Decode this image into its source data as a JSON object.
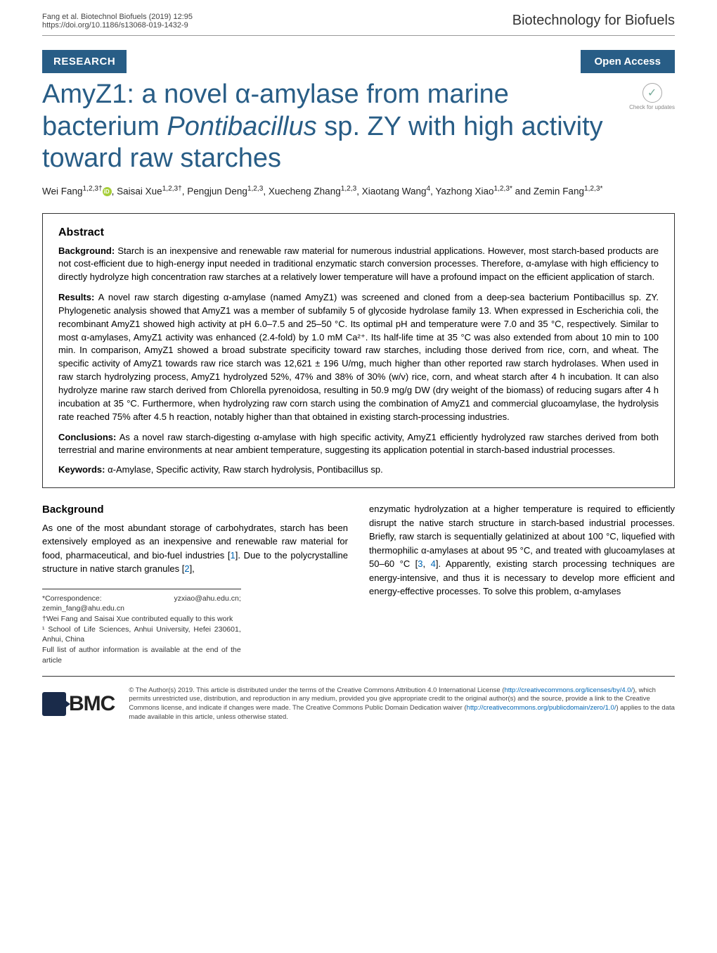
{
  "header": {
    "citation": "Fang et al. Biotechnol Biofuels    (2019) 12:95",
    "doi": "https://doi.org/10.1186/s13068-019-1432-9",
    "journal": "Biotechnology for Biofuels"
  },
  "badges": {
    "section": "RESEARCH",
    "open_access": "Open Access",
    "check_updates": "Check for updates"
  },
  "title": {
    "html": "AmyZ1: a novel α-amylase from marine bacterium <em>Pontibacillus</em> sp. ZY with high activity toward raw starches"
  },
  "authors_html": "Wei Fang<sup>1,2,3†</sup><span class='orcid-icon' data-name='orcid-icon' data-interactable='false'></span>, Saisai Xue<sup>1,2,3†</sup>, Pengjun Deng<sup>1,2,3</sup>, Xuecheng Zhang<sup>1,2,3</sup>, Xiaotang Wang<sup>4</sup>, Yazhong Xiao<sup>1,2,3*</sup> and Zemin Fang<sup>1,2,3*</sup>",
  "abstract": {
    "heading": "Abstract",
    "background_label": "Background:",
    "background_text": "Starch is an inexpensive and renewable raw material for numerous industrial applications. However, most starch-based products are not cost-efficient due to high-energy input needed in traditional enzymatic starch conversion processes. Therefore, α-amylase with high efficiency to directly hydrolyze high concentration raw starches at a relatively lower temperature will have a profound impact on the efficient application of starch.",
    "results_label": "Results:",
    "results_text": "A novel raw starch digesting α-amylase (named AmyZ1) was screened and cloned from a deep-sea bacterium Pontibacillus sp. ZY. Phylogenetic analysis showed that AmyZ1 was a member of subfamily 5 of glycoside hydrolase family 13. When expressed in Escherichia coli, the recombinant AmyZ1 showed high activity at pH 6.0–7.5 and 25–50 °C. Its optimal pH and temperature were 7.0 and 35 °C, respectively. Similar to most α-amylases, AmyZ1 activity was enhanced (2.4-fold) by 1.0 mM Ca²⁺. Its half-life time at 35 °C was also extended from about 10 min to 100 min. In comparison, AmyZ1 showed a broad substrate specificity toward raw starches, including those derived from rice, corn, and wheat. The specific activity of AmyZ1 towards raw rice starch was 12,621 ± 196 U/mg, much higher than other reported raw starch hydrolases. When used in raw starch hydrolyzing process, AmyZ1 hydrolyzed 52%, 47% and 38% of 30% (w/v) rice, corn, and wheat starch after 4 h incubation. It can also hydrolyze marine raw starch derived from Chlorella pyrenoidosa, resulting in 50.9 mg/g DW (dry weight of the biomass) of reducing sugars after 4 h incubation at 35 °C. Furthermore, when hydrolyzing raw corn starch using the combination of AmyZ1 and commercial glucoamylase, the hydrolysis rate reached 75% after 4.5 h reaction, notably higher than that obtained in existing starch-processing industries.",
    "conclusions_label": "Conclusions:",
    "conclusions_text": "As a novel raw starch-digesting α-amylase with high specific activity, AmyZ1 efficiently hydrolyzed raw starches derived from both terrestrial and marine environments at near ambient temperature, suggesting its application potential in starch-based industrial processes.",
    "keywords_label": "Keywords:",
    "keywords_text": "α-Amylase, Specific activity, Raw starch hydrolysis, Pontibacillus sp."
  },
  "body": {
    "background_heading": "Background",
    "left_html": "As one of the most abundant storage of carbohydrates, starch has been extensively employed as an inexpensive and renewable raw material for food, pharmaceutical, and bio-fuel industries [<span class='ref-link'>1</span>]. Due to the polycrystalline structure in native starch granules [<span class='ref-link'>2</span>],",
    "right_html": "enzymatic hydrolyzation at a higher temperature is required to efficiently disrupt the native starch structure in starch-based industrial processes. Briefly, raw starch is sequentially gelatinized at about 100 °C, liquefied with thermophilic α-amylases at about 95 °C, and treated with glucoamylases at 50–60 °C [<span class='ref-link'>3</span>, <span class='ref-link'>4</span>]. Apparently, existing starch processing techniques are energy-intensive, and thus it is necessary to develop more efficient and energy-effective processes. To solve this problem, α-amylases"
  },
  "footnotes": {
    "correspondence": "*Correspondence:  yzxiao@ahu.edu.cn; zemin_fang@ahu.edu.cn",
    "equal": "†Wei Fang and Saisai Xue contributed equally to this work",
    "affil": "¹ School of Life Sciences, Anhui University, Hefei 230601, Anhui, China",
    "full_list": "Full list of author information is available at the end of the article"
  },
  "footer": {
    "bmc": "BMC",
    "license_html": "© The Author(s) 2019. This article is distributed under the terms of the Creative Commons Attribution 4.0 International License (<span class='license-link'>http://creativecommons.org/licenses/by/4.0/</span>), which permits unrestricted use, distribution, and reproduction in any medium, provided you give appropriate credit to the original author(s) and the source, provide a link to the Creative Commons license, and indicate if changes were made. The Creative Commons Public Domain Dedication waiver (<span class='license-link'>http://creativecommons.org/publicdomain/zero/1.0/</span>) applies to the data made available in this article, unless otherwise stated."
  },
  "colors": {
    "brand": "#285d86",
    "link": "#0066b3",
    "orcid": "#a6ce39",
    "bmc_dark": "#1a2b4a"
  }
}
